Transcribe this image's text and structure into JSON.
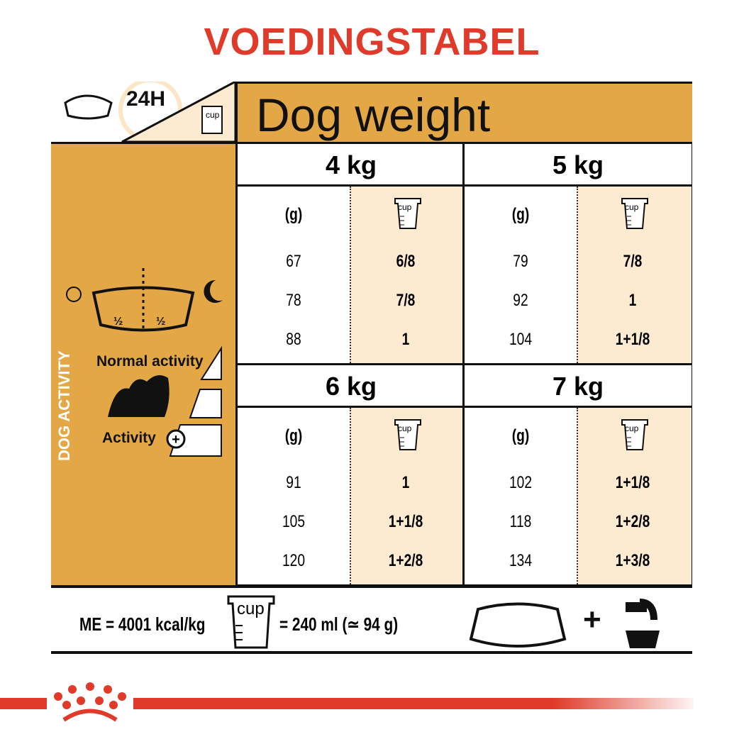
{
  "title": "VOEDINGSTABEL",
  "header": {
    "period": "24H",
    "cup_label": "cup",
    "dog_weight": "Dog weight"
  },
  "left_panel": {
    "vertical_label": "DOG ACTIVITY",
    "half_left": "½",
    "half_right": "½",
    "normal_activity": "Normal activity",
    "activity": "Activity"
  },
  "table": {
    "col_g": "(g)",
    "col_cup": "cup",
    "weights": [
      {
        "label": "4 kg",
        "rows": [
          [
            "67",
            "6/8"
          ],
          [
            "78",
            "7/8"
          ],
          [
            "88",
            "1"
          ]
        ]
      },
      {
        "label": "5 kg",
        "rows": [
          [
            "79",
            "7/8"
          ],
          [
            "92",
            "1"
          ],
          [
            "104",
            "1+1/8"
          ]
        ]
      },
      {
        "label": "6 kg",
        "rows": [
          [
            "91",
            "1"
          ],
          [
            "105",
            "1+1/8"
          ],
          [
            "120",
            "1+2/8"
          ]
        ]
      },
      {
        "label": "7 kg",
        "rows": [
          [
            "102",
            "1+1/8"
          ],
          [
            "118",
            "1+2/8"
          ],
          [
            "134",
            "1+3/8"
          ]
        ]
      }
    ]
  },
  "footer": {
    "energy": "ME = 4001 kcal/kg",
    "cup_label": "cup",
    "cup_equiv": "= 240 ml (≃ 94 g)",
    "plus": "+"
  },
  "colors": {
    "brand_red": "#e03a2a",
    "gold": "#e3a745",
    "cream": "#fcebd0"
  },
  "logo": "Royal Canin crown"
}
